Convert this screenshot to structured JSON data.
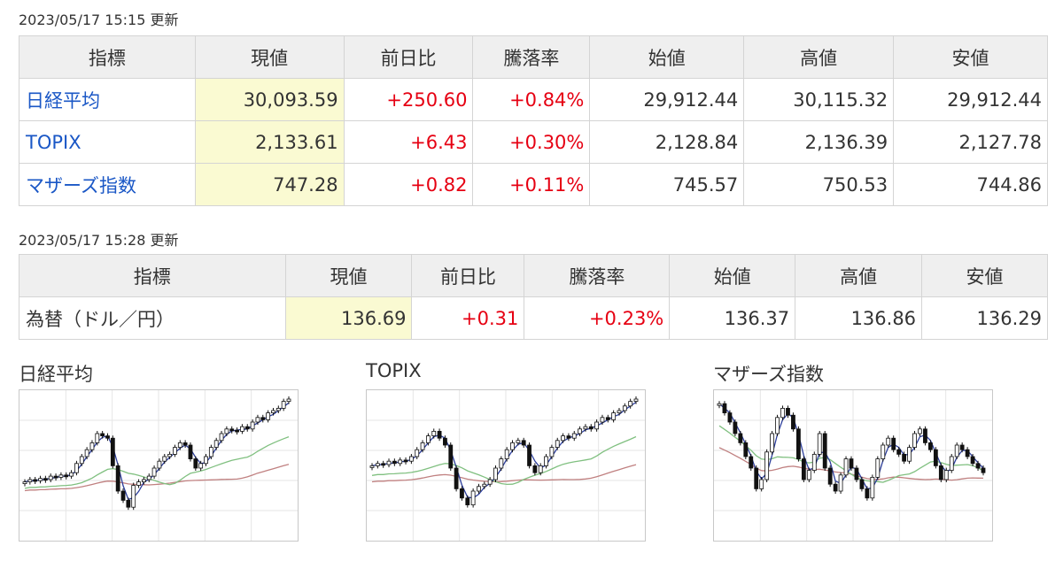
{
  "index_table": {
    "timestamp": "2023/05/17 15:15 更新",
    "headers": [
      "指標",
      "現値",
      "前日比",
      "騰落率",
      "始値",
      "高値",
      "安値"
    ],
    "rows": [
      {
        "name": "日経平均",
        "current": "30,093.59",
        "change": "+250.60",
        "rate": "+0.84%",
        "open": "29,912.44",
        "high": "30,115.32",
        "low": "29,912.44"
      },
      {
        "name": "TOPIX",
        "current": "2,133.61",
        "change": "+6.43",
        "rate": "+0.30%",
        "open": "2,128.84",
        "high": "2,136.39",
        "low": "2,127.78"
      },
      {
        "name": "マザーズ指数",
        "current": "747.28",
        "change": "+0.82",
        "rate": "+0.11%",
        "open": "745.57",
        "high": "750.53",
        "low": "744.86"
      }
    ]
  },
  "fx_table": {
    "timestamp": "2023/05/17 15:28 更新",
    "headers": [
      "指標",
      "現値",
      "前日比",
      "騰落率",
      "始値",
      "高値",
      "安値"
    ],
    "rows": [
      {
        "name": "為替（ドル／円）",
        "current": "136.69",
        "change": "+0.31",
        "rate": "+0.23%",
        "open": "136.37",
        "high": "136.86",
        "low": "136.29"
      }
    ]
  },
  "colors": {
    "up": "#e60012",
    "link": "#1a57c6",
    "highlight": "#fafad2",
    "header_bg": "#efefef",
    "ma_short": "#2c3e9c",
    "ma_mid": "#80c080",
    "ma_long": "#c08080"
  },
  "charts": [
    {
      "title": "日経平均",
      "candles": [
        0.28,
        0.3,
        0.29,
        0.31,
        0.3,
        0.33,
        0.32,
        0.34,
        0.33,
        0.36,
        0.44,
        0.5,
        0.56,
        0.62,
        0.7,
        0.68,
        0.66,
        0.42,
        0.2,
        0.12,
        0.06,
        0.25,
        0.28,
        0.3,
        0.33,
        0.4,
        0.46,
        0.5,
        0.52,
        0.58,
        0.62,
        0.6,
        0.48,
        0.4,
        0.44,
        0.5,
        0.58,
        0.64,
        0.7,
        0.74,
        0.73,
        0.72,
        0.76,
        0.74,
        0.8,
        0.84,
        0.82,
        0.88,
        0.9,
        0.92,
        0.98,
        1.0
      ]
    },
    {
      "title": "TOPIX",
      "candles": [
        0.42,
        0.44,
        0.43,
        0.46,
        0.44,
        0.47,
        0.46,
        0.5,
        0.56,
        0.62,
        0.68,
        0.72,
        0.66,
        0.6,
        0.4,
        0.22,
        0.14,
        0.08,
        0.2,
        0.24,
        0.26,
        0.3,
        0.4,
        0.48,
        0.56,
        0.62,
        0.64,
        0.6,
        0.42,
        0.36,
        0.42,
        0.5,
        0.58,
        0.64,
        0.68,
        0.66,
        0.7,
        0.74,
        0.76,
        0.74,
        0.8,
        0.84,
        0.82,
        0.88,
        0.9,
        0.94,
        0.98,
        1.0
      ]
    },
    {
      "title": "マザーズ指数",
      "candles": [
        0.96,
        0.88,
        0.8,
        0.7,
        0.62,
        0.5,
        0.4,
        0.22,
        0.3,
        0.54,
        0.7,
        0.84,
        0.92,
        0.86,
        0.74,
        0.48,
        0.3,
        0.38,
        0.52,
        0.7,
        0.4,
        0.26,
        0.2,
        0.34,
        0.48,
        0.4,
        0.3,
        0.22,
        0.14,
        0.32,
        0.48,
        0.6,
        0.66,
        0.56,
        0.52,
        0.46,
        0.58,
        0.7,
        0.74,
        0.62,
        0.56,
        0.42,
        0.3,
        0.38,
        0.5,
        0.6,
        0.56,
        0.5,
        0.44,
        0.4,
        0.36
      ]
    }
  ]
}
